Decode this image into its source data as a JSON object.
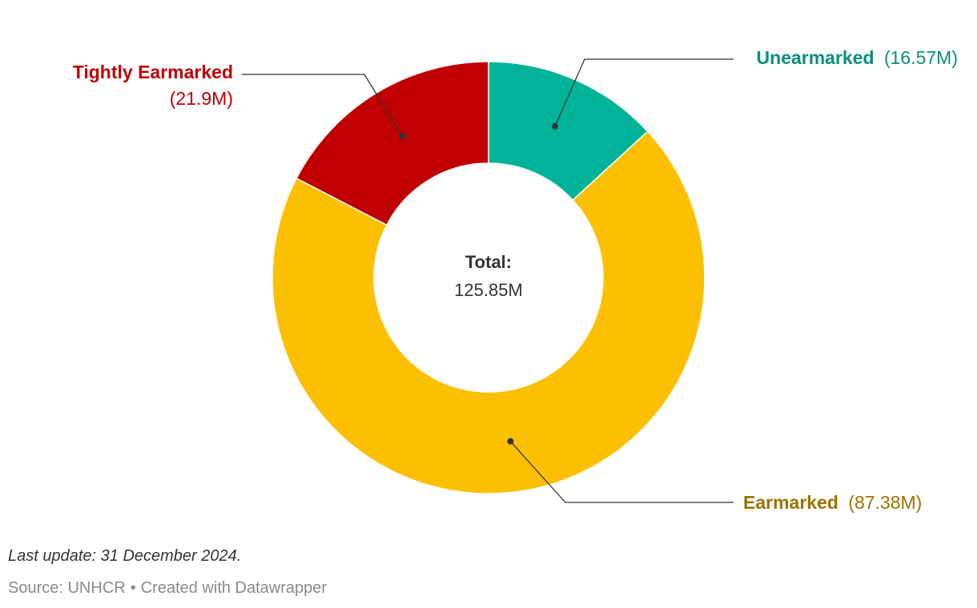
{
  "chart_data": {
    "type": "pie",
    "variant": "donut",
    "slices": [
      {
        "label": "Unearmarked",
        "value_text": "(16.57M)",
        "value": 16.57,
        "color": "#00b398",
        "label_color": "#0c8f79"
      },
      {
        "label": "Earmarked",
        "value_text": "(87.38M)",
        "value": 87.38,
        "color": "#fcc000",
        "label_color": "#9c7300"
      },
      {
        "label": "Tightly Earmarked",
        "value_text": "(21.9M)",
        "value": 21.9,
        "color": "#c00000",
        "label_color": "#c00000"
      }
    ],
    "center": {
      "label": "Total:",
      "value": "125.85M"
    }
  },
  "footer": {
    "update": "Last update: 31 December 2024.",
    "source": "Source: UNHCR",
    "separator": "•",
    "credit": "Created with Datawrapper"
  }
}
